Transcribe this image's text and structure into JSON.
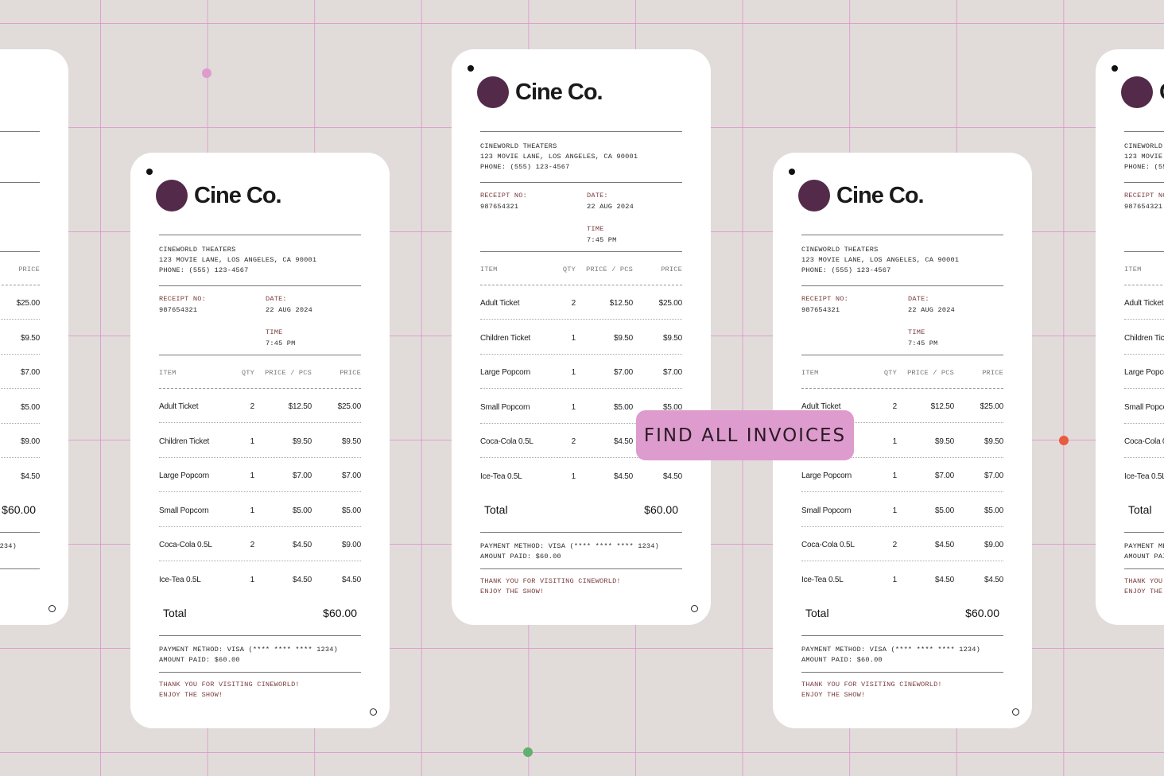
{
  "cta": {
    "label": "FIND ALL INVOICES"
  },
  "colors": {
    "background": "#e1dcd9",
    "grid": "#de8ccd",
    "logo": "#532a4a",
    "accent_text": "#7a3b3b",
    "cta_bg": "#dd9bce",
    "dot_pink": "#dd9bce",
    "dot_red": "#ea5a3e",
    "dot_green": "#62b06e"
  },
  "receipt": {
    "brand": "Cine Co.",
    "theater": "CINEWORLD THEATERS",
    "address": "123 MOVIE LANE, LOS ANGELES, CA 90001",
    "phone": "PHONE: (555) 123-4567",
    "receipt_no_label": "RECEIPT NO:",
    "receipt_no": "987654321",
    "date_label": "DATE:",
    "date": "22 AUG 2024",
    "time_label": "TIME",
    "time": "7:45 PM",
    "columns": {
      "item": "ITEM",
      "qty": "QTY",
      "pcs": "PRICE / PCS",
      "price": "PRICE"
    },
    "items": [
      {
        "name": "Adult Ticket",
        "qty": "2",
        "pcs": "$12.50",
        "price": "$25.00"
      },
      {
        "name": "Children Ticket",
        "qty": "1",
        "pcs": "$9.50",
        "price": "$9.50"
      },
      {
        "name": "Large Popcorn",
        "qty": "1",
        "pcs": "$7.00",
        "price": "$7.00"
      },
      {
        "name": "Small Popcorn",
        "qty": "1",
        "pcs": "$5.00",
        "price": "$5.00"
      },
      {
        "name": "Coca-Cola 0.5L",
        "qty": "2",
        "pcs": "$4.50",
        "price": "$9.00"
      },
      {
        "name": "Ice-Tea 0.5L",
        "qty": "1",
        "pcs": "$4.50",
        "price": "$4.50"
      }
    ],
    "total_label": "Total",
    "total_value": "$60.00",
    "payment_method": "PAYMENT METHOD: VISA (**** **** **** 1234)",
    "amount_paid": "AMOUNT PAID: $60.00",
    "thanks_line1": "THANK YOU FOR VISITING CINEWORLD!",
    "thanks_line2": "ENJOY THE SHOW!"
  }
}
